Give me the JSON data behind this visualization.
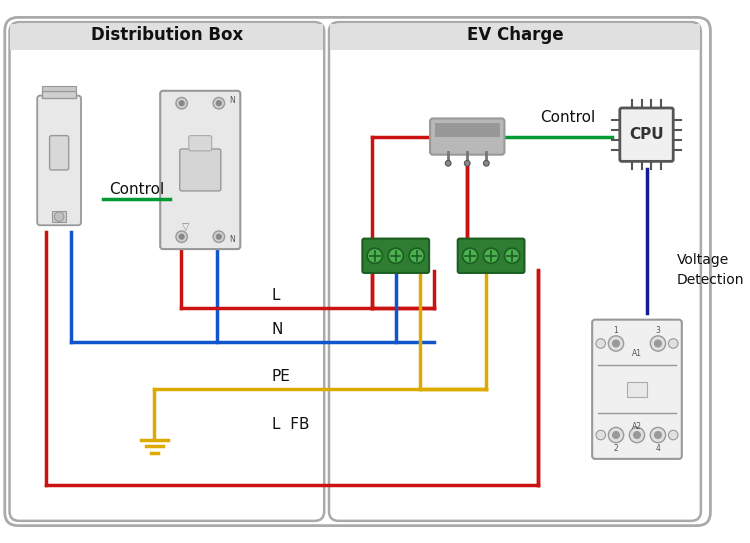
{
  "bg_color": "#ffffff",
  "panel_edge": "#aaaaaa",
  "panel_fill": "#ffffff",
  "title_bg": "#e0e0e0",
  "title_dist": "Distribution Box",
  "title_ev": "EV Charge",
  "lbl_ctrl_dist": "Control",
  "lbl_ctrl_ev": "Control",
  "lbl_voltage": "Voltage\nDetection",
  "lbl_L": "L",
  "lbl_N": "N",
  "lbl_PE": "PE",
  "lbl_LFB": "L  FB",
  "red": "#cc1111",
  "blue": "#1155cc",
  "yellow": "#ddaa00",
  "green": "#009933",
  "dark_blue": "#1a1a99",
  "comp_edge": "#999999",
  "comp_fill": "#e8e8e8",
  "comp_fill2": "#d0d0d0",
  "green_term": "#2e7d32",
  "green_term_light": "#4caf50",
  "cpu_fill": "#f0f0f0",
  "relay_fill": "#b0b0b0",
  "relay_fill2": "#909090"
}
